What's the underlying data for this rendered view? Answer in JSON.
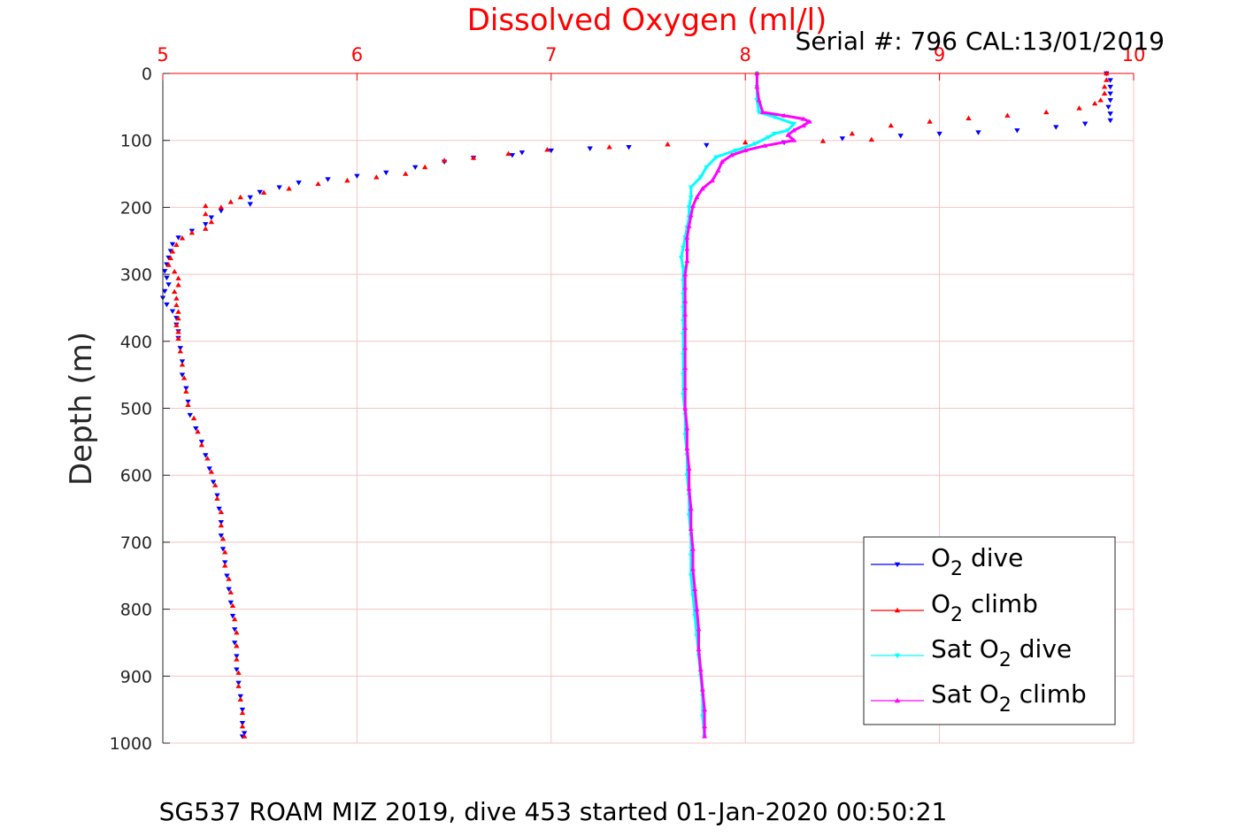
{
  "chart_data": {
    "type": "line",
    "title": "Dissolved Oxygen (ml/l)",
    "serial_text": "Serial #: 796  CAL:13/01/2019",
    "ylabel": "Depth (m)",
    "caption": "SG537 ROAM MIZ 2019, dive 453 started 01-Jan-2020 00:50:21",
    "xlim": [
      5,
      10
    ],
    "ylim": [
      0,
      1000
    ],
    "y_reversed": true,
    "x_axis_position": "top",
    "grid": true,
    "x_ticks": [
      5,
      6,
      7,
      8,
      9,
      10
    ],
    "y_ticks": [
      0,
      100,
      200,
      300,
      400,
      500,
      600,
      700,
      800,
      900,
      1000
    ],
    "legend_position": "bottom-right",
    "colors": {
      "title": "#ff0000",
      "x_tick_labels": "#ff0000",
      "grid": "#f3c4c4",
      "axis": "#ff0000"
    },
    "series": [
      {
        "name": "O2 dive",
        "legend_main": "O",
        "legend_sub": "2",
        "legend_suffix": " dive",
        "color": "#0000ff",
        "marker": "triangle-down",
        "points": [
          [
            9.86,
            0
          ],
          [
            9.88,
            10
          ],
          [
            9.88,
            20
          ],
          [
            9.88,
            30
          ],
          [
            9.88,
            40
          ],
          [
            9.87,
            50
          ],
          [
            9.88,
            60
          ],
          [
            9.88,
            70
          ],
          [
            9.75,
            75
          ],
          [
            9.6,
            80
          ],
          [
            9.4,
            85
          ],
          [
            9.2,
            88
          ],
          [
            9.0,
            90
          ],
          [
            8.8,
            93
          ],
          [
            8.5,
            97
          ],
          [
            8.2,
            103
          ],
          [
            7.8,
            107
          ],
          [
            7.4,
            110
          ],
          [
            7.2,
            112
          ],
          [
            7.0,
            115
          ],
          [
            6.85,
            118
          ],
          [
            6.8,
            122
          ],
          [
            6.6,
            126
          ],
          [
            6.45,
            132
          ],
          [
            6.3,
            140
          ],
          [
            6.15,
            148
          ],
          [
            6.0,
            153
          ],
          [
            5.85,
            158
          ],
          [
            5.7,
            163
          ],
          [
            5.6,
            170
          ],
          [
            5.5,
            177
          ],
          [
            5.45,
            185
          ],
          [
            5.45,
            195
          ],
          [
            5.3,
            205
          ],
          [
            5.25,
            215
          ],
          [
            5.22,
            225
          ],
          [
            5.15,
            235
          ],
          [
            5.08,
            245
          ],
          [
            5.05,
            255
          ],
          [
            5.04,
            265
          ],
          [
            5.03,
            275
          ],
          [
            5.02,
            285
          ],
          [
            5.01,
            295
          ],
          [
            5.02,
            305
          ],
          [
            5.03,
            315
          ],
          [
            5.01,
            325
          ],
          [
            5.0,
            335
          ],
          [
            5.02,
            345
          ],
          [
            5.05,
            355
          ],
          [
            5.07,
            365
          ],
          [
            5.07,
            375
          ],
          [
            5.08,
            385
          ],
          [
            5.08,
            395
          ],
          [
            5.09,
            410
          ],
          [
            5.1,
            430
          ],
          [
            5.1,
            450
          ],
          [
            5.12,
            470
          ],
          [
            5.13,
            490
          ],
          [
            5.14,
            510
          ],
          [
            5.17,
            530
          ],
          [
            5.2,
            550
          ],
          [
            5.22,
            570
          ],
          [
            5.24,
            590
          ],
          [
            5.26,
            610
          ],
          [
            5.28,
            630
          ],
          [
            5.29,
            650
          ],
          [
            5.3,
            670
          ],
          [
            5.3,
            690
          ],
          [
            5.31,
            710
          ],
          [
            5.32,
            730
          ],
          [
            5.33,
            750
          ],
          [
            5.34,
            770
          ],
          [
            5.35,
            790
          ],
          [
            5.36,
            810
          ],
          [
            5.37,
            830
          ],
          [
            5.37,
            850
          ],
          [
            5.38,
            870
          ],
          [
            5.38,
            890
          ],
          [
            5.39,
            910
          ],
          [
            5.4,
            930
          ],
          [
            5.41,
            950
          ],
          [
            5.41,
            970
          ],
          [
            5.42,
            985
          ],
          [
            5.41,
            990
          ]
        ]
      },
      {
        "name": "O2 climb",
        "legend_main": "O",
        "legend_sub": "2",
        "legend_suffix": " climb",
        "color": "#ff0000",
        "marker": "triangle-up",
        "points": [
          [
            9.86,
            0
          ],
          [
            9.86,
            10
          ],
          [
            9.85,
            20
          ],
          [
            9.85,
            30
          ],
          [
            9.83,
            40
          ],
          [
            9.8,
            45
          ],
          [
            9.72,
            52
          ],
          [
            9.55,
            58
          ],
          [
            9.35,
            63
          ],
          [
            9.15,
            67
          ],
          [
            8.95,
            72
          ],
          [
            8.75,
            78
          ],
          [
            8.55,
            90
          ],
          [
            8.65,
            99
          ],
          [
            8.4,
            101
          ],
          [
            8.0,
            103
          ],
          [
            7.6,
            106
          ],
          [
            7.3,
            110
          ],
          [
            6.98,
            114
          ],
          [
            6.78,
            120
          ],
          [
            6.6,
            126
          ],
          [
            6.45,
            130
          ],
          [
            6.35,
            140
          ],
          [
            6.25,
            150
          ],
          [
            6.1,
            155
          ],
          [
            5.95,
            160
          ],
          [
            5.8,
            165
          ],
          [
            5.65,
            172
          ],
          [
            5.52,
            178
          ],
          [
            5.4,
            185
          ],
          [
            5.35,
            192
          ],
          [
            5.3,
            200
          ],
          [
            5.22,
            198
          ],
          [
            5.22,
            210
          ],
          [
            5.25,
            222
          ],
          [
            5.22,
            232
          ],
          [
            5.15,
            238
          ],
          [
            5.1,
            246
          ],
          [
            5.07,
            256
          ],
          [
            5.05,
            266
          ],
          [
            5.04,
            276
          ],
          [
            5.03,
            286
          ],
          [
            5.06,
            296
          ],
          [
            5.08,
            306
          ],
          [
            5.08,
            316
          ],
          [
            5.06,
            326
          ],
          [
            5.07,
            336
          ],
          [
            5.07,
            346
          ],
          [
            5.08,
            356
          ],
          [
            5.08,
            366
          ],
          [
            5.07,
            376
          ],
          [
            5.08,
            386
          ],
          [
            5.08,
            396
          ],
          [
            5.09,
            415
          ],
          [
            5.1,
            435
          ],
          [
            5.11,
            455
          ],
          [
            5.12,
            475
          ],
          [
            5.13,
            495
          ],
          [
            5.16,
            515
          ],
          [
            5.18,
            535
          ],
          [
            5.2,
            555
          ],
          [
            5.23,
            575
          ],
          [
            5.25,
            595
          ],
          [
            5.27,
            615
          ],
          [
            5.28,
            635
          ],
          [
            5.3,
            655
          ],
          [
            5.3,
            675
          ],
          [
            5.31,
            695
          ],
          [
            5.32,
            715
          ],
          [
            5.32,
            735
          ],
          [
            5.34,
            755
          ],
          [
            5.35,
            775
          ],
          [
            5.36,
            795
          ],
          [
            5.37,
            815
          ],
          [
            5.38,
            835
          ],
          [
            5.38,
            855
          ],
          [
            5.38,
            875
          ],
          [
            5.39,
            895
          ],
          [
            5.39,
            915
          ],
          [
            5.4,
            935
          ],
          [
            5.41,
            955
          ],
          [
            5.41,
            975
          ],
          [
            5.42,
            990
          ]
        ]
      },
      {
        "name": "Sat O2 dive",
        "legend_main": "Sat O",
        "legend_sub": "2",
        "legend_suffix": " dive",
        "color": "#00ffff",
        "marker": "triangle-down",
        "points": [
          [
            8.06,
            0
          ],
          [
            8.06,
            20
          ],
          [
            8.06,
            40
          ],
          [
            8.07,
            58
          ],
          [
            8.15,
            65
          ],
          [
            8.25,
            75
          ],
          [
            8.22,
            85
          ],
          [
            8.15,
            90
          ],
          [
            8.12,
            95
          ],
          [
            8.05,
            105
          ],
          [
            7.95,
            115
          ],
          [
            7.85,
            125
          ],
          [
            7.8,
            140
          ],
          [
            7.77,
            155
          ],
          [
            7.72,
            170
          ],
          [
            7.72,
            185
          ],
          [
            7.71,
            200
          ],
          [
            7.71,
            215
          ],
          [
            7.7,
            230
          ],
          [
            7.69,
            245
          ],
          [
            7.68,
            260
          ],
          [
            7.67,
            275
          ],
          [
            7.68,
            290
          ],
          [
            7.68,
            310
          ],
          [
            7.68,
            330
          ],
          [
            7.68,
            350
          ],
          [
            7.68,
            370
          ],
          [
            7.68,
            390
          ],
          [
            7.68,
            420
          ],
          [
            7.68,
            450
          ],
          [
            7.68,
            480
          ],
          [
            7.69,
            510
          ],
          [
            7.69,
            540
          ],
          [
            7.7,
            570
          ],
          [
            7.7,
            600
          ],
          [
            7.71,
            630
          ],
          [
            7.71,
            660
          ],
          [
            7.72,
            690
          ],
          [
            7.72,
            720
          ],
          [
            7.72,
            750
          ],
          [
            7.73,
            780
          ],
          [
            7.74,
            810
          ],
          [
            7.75,
            840
          ],
          [
            7.76,
            870
          ],
          [
            7.77,
            900
          ],
          [
            7.78,
            930
          ],
          [
            7.78,
            960
          ],
          [
            7.79,
            990
          ]
        ]
      },
      {
        "name": "Sat O2 climb",
        "legend_main": "Sat O",
        "legend_sub": "2",
        "legend_suffix": " climb",
        "color": "#ff00ff",
        "marker": "triangle-up",
        "points": [
          [
            8.06,
            0
          ],
          [
            8.06,
            20
          ],
          [
            8.07,
            40
          ],
          [
            8.09,
            58
          ],
          [
            8.2,
            63
          ],
          [
            8.3,
            68
          ],
          [
            8.33,
            72
          ],
          [
            8.3,
            78
          ],
          [
            8.25,
            85
          ],
          [
            8.22,
            92
          ],
          [
            8.25,
            100
          ],
          [
            8.1,
            108
          ],
          [
            8.0,
            115
          ],
          [
            7.93,
            122
          ],
          [
            7.88,
            132
          ],
          [
            7.86,
            145
          ],
          [
            7.83,
            160
          ],
          [
            7.78,
            172
          ],
          [
            7.75,
            185
          ],
          [
            7.73,
            198
          ],
          [
            7.72,
            212
          ],
          [
            7.71,
            228
          ],
          [
            7.7,
            245
          ],
          [
            7.7,
            262
          ],
          [
            7.7,
            280
          ],
          [
            7.69,
            300
          ],
          [
            7.69,
            320
          ],
          [
            7.69,
            340
          ],
          [
            7.69,
            360
          ],
          [
            7.69,
            380
          ],
          [
            7.69,
            410
          ],
          [
            7.69,
            440
          ],
          [
            7.69,
            470
          ],
          [
            7.69,
            500
          ],
          [
            7.7,
            530
          ],
          [
            7.7,
            560
          ],
          [
            7.71,
            590
          ],
          [
            7.71,
            620
          ],
          [
            7.72,
            650
          ],
          [
            7.72,
            680
          ],
          [
            7.73,
            710
          ],
          [
            7.73,
            740
          ],
          [
            7.74,
            770
          ],
          [
            7.75,
            800
          ],
          [
            7.76,
            830
          ],
          [
            7.76,
            860
          ],
          [
            7.77,
            890
          ],
          [
            7.78,
            920
          ],
          [
            7.79,
            950
          ],
          [
            7.79,
            975
          ],
          [
            7.79,
            990
          ]
        ]
      }
    ]
  }
}
